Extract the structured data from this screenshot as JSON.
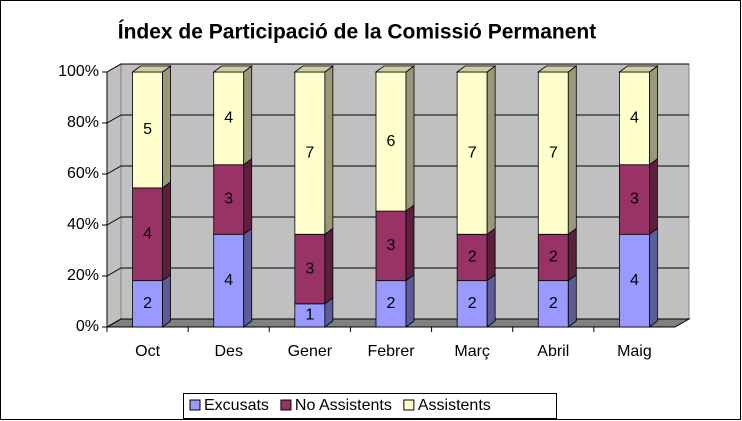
{
  "chart_data": {
    "type": "bar",
    "stacked": "percent",
    "title": "Índex de Participació de la Comissió Permanent",
    "categories": [
      "Oct",
      "Des",
      "Gener",
      "Febrer",
      "Març",
      "Abril",
      "Maig"
    ],
    "series": [
      {
        "name": "Excusats",
        "color": "#9999ff",
        "values": [
          2,
          4,
          1,
          2,
          2,
          2,
          4
        ]
      },
      {
        "name": "No Assistents",
        "color": "#993366",
        "values": [
          4,
          3,
          3,
          3,
          2,
          2,
          3
        ]
      },
      {
        "name": "Assistents",
        "color": "#ffffcc",
        "values": [
          5,
          4,
          7,
          6,
          7,
          7,
          4
        ]
      }
    ],
    "ylim": [
      0,
      100
    ],
    "yticks": [
      {
        "value": 0,
        "label": "0%"
      },
      {
        "value": 20,
        "label": "20%"
      },
      {
        "value": 40,
        "label": "40%"
      },
      {
        "value": 60,
        "label": "60%"
      },
      {
        "value": 80,
        "label": "80%"
      },
      {
        "value": 100,
        "label": "100%"
      }
    ],
    "grid": true,
    "legend": "bottom"
  }
}
